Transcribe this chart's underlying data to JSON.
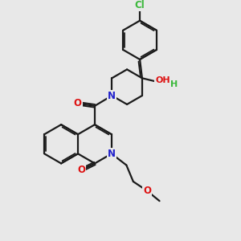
{
  "background_color": "#e8e8e8",
  "bond_color": "#1a1a1a",
  "atom_colors": {
    "N": "#2020cc",
    "O": "#dd1111",
    "Cl": "#3ab83a",
    "C": "#1a1a1a"
  },
  "figsize": [
    3.0,
    3.0
  ],
  "dpi": 100
}
